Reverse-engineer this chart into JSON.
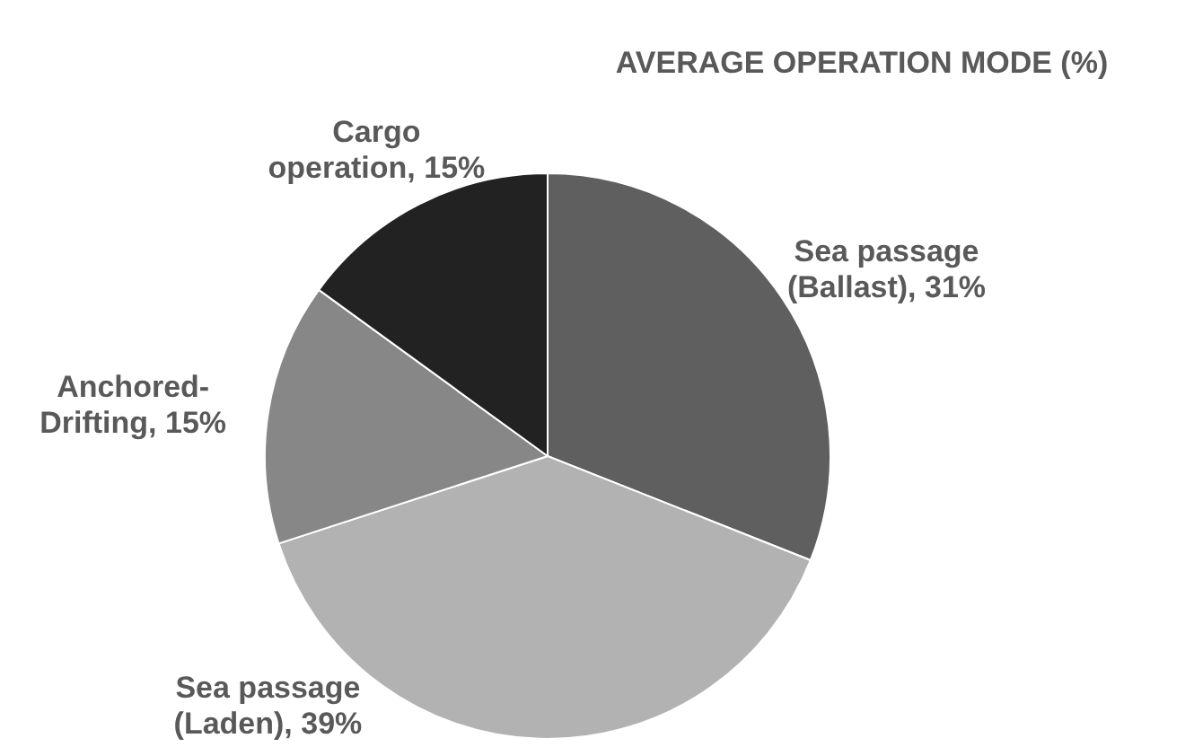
{
  "chart_data": {
    "type": "pie",
    "title": "AVERAGE OPERATION MODE (%)",
    "categories": [
      "Sea passage (Ballast)",
      "Sea passage (Laden)",
      "Anchored-Drifting",
      "Cargo operation"
    ],
    "values": [
      31,
      39,
      15,
      15
    ],
    "colors": [
      "#5f5f5f",
      "#b2b2b2",
      "#878787",
      "#222222"
    ],
    "value_labels": [
      "31%",
      "39%",
      "15%",
      "15%"
    ],
    "legend": false
  }
}
